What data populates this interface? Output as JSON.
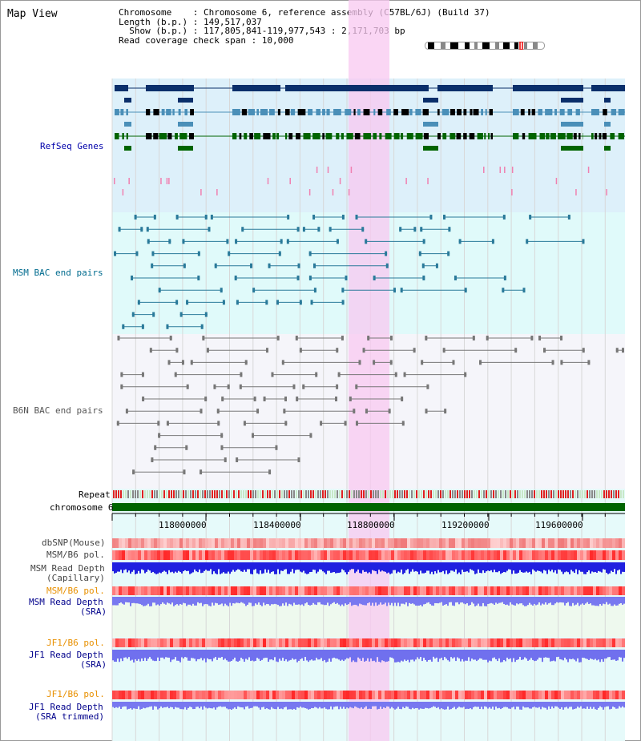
{
  "page": {
    "title": "Map View"
  },
  "header": {
    "line1": "Chromosome    : Chromosome 6, reference assembly (C57BL/6J) (Build 37)",
    "line2": "Length (b.p.) : 149,517,037",
    "line3": "  Show (b.p.) : 117,805,841-119,977,543 : 2,171,703 bp",
    "line4": "Read coverage check span : 10,000"
  },
  "tracks": {
    "refseq": "RefSeq Genes",
    "msm_bac": "MSM BAC end pairs",
    "b6n_bac": "B6N BAC end pairs",
    "repeat": "Repeat",
    "chromosome": "chromosome 6",
    "dbsnp": "dbSNP(Mouse)",
    "msm_b6_pol": "MSM/B6 pol.",
    "msm_depth_cap_1": "MSM Read Depth",
    "msm_depth_cap_2": "(Capillary)",
    "msm_b6_pol2": "MSM/B6 pol.",
    "msm_depth_sra_1": "MSM Read Depth",
    "msm_depth_sra_2": "(SRA)",
    "jf1_b6_pol": "JF1/B6 pol.",
    "jf1_depth_sra_1": "JF1 Read Depth",
    "jf1_depth_sra_2": "(SRA)",
    "jf1_b6_pol2": "JF1/B6 pol.",
    "jf1_depth_trim_1": "JF1 Read Depth",
    "jf1_depth_trim_2": "(SRA trimmed)"
  },
  "axis": {
    "ticks": [
      "118000000",
      "118400000",
      "118800000",
      "119200000",
      "119600000"
    ]
  },
  "colors": {
    "refseq_bg": "#ddf0fa",
    "msm_bg": "#e0fafa",
    "b6n_bg": "#f5f5fa",
    "highlight": "#f8c8f0",
    "chromosome": "#006400",
    "refseq_label": "#0000aa",
    "msm_label": "#006b8e",
    "b6n_label": "#555555",
    "orange_label": "#e89000",
    "blue_label": "#00008b"
  }
}
